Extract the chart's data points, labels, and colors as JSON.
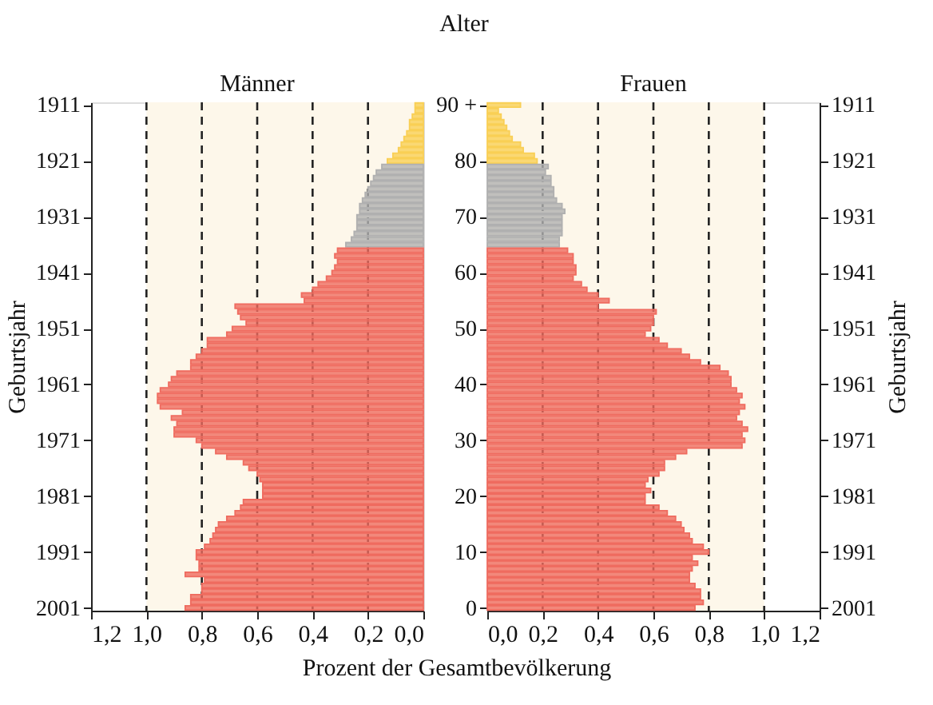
{
  "chart_data": [
    {
      "type": "bar",
      "orientation": "horizontal",
      "title": "Männer",
      "xlabel": "Prozent der Gesamtbevölkerung",
      "ylabel": "Geburtsjahr",
      "categories": [
        "1911",
        null,
        null,
        null,
        null,
        null,
        null,
        null,
        null,
        null,
        "1921",
        null,
        null,
        null,
        null,
        null,
        null,
        null,
        null,
        null,
        "1931",
        null,
        null,
        null,
        null,
        null,
        null,
        null,
        null,
        null,
        "1941",
        null,
        null,
        null,
        null,
        null,
        null,
        null,
        null,
        null,
        "1951",
        null,
        null,
        null,
        null,
        null,
        null,
        null,
        null,
        null,
        "1961",
        null,
        null,
        null,
        null,
        null,
        null,
        null,
        null,
        null,
        "1971",
        null,
        null,
        null,
        null,
        null,
        null,
        null,
        null,
        null,
        "1981",
        null,
        null,
        null,
        null,
        null,
        null,
        null,
        null,
        null,
        "1991",
        null,
        null,
        null,
        null,
        null,
        null,
        null,
        null,
        null,
        "2001"
      ],
      "series": [
        {
          "values": [
            0.03,
            0.03,
            0.04,
            0.05,
            0.05,
            0.06,
            0.07,
            0.08,
            0.09,
            0.11,
            0.13,
            0.15,
            0.17,
            0.18,
            0.19,
            0.2,
            0.21,
            0.22,
            0.23,
            0.23,
            0.24,
            0.24,
            0.24,
            0.25,
            0.26,
            0.28,
            0.31,
            0.32,
            0.31,
            0.32,
            0.33,
            0.35,
            0.38,
            0.4,
            0.44,
            0.43,
            0.68,
            0.67,
            0.66,
            0.64,
            0.69,
            0.71,
            0.78,
            0.78,
            0.8,
            0.82,
            0.84,
            0.84,
            0.89,
            0.91,
            0.92,
            0.95,
            0.96,
            0.96,
            0.95,
            0.87,
            0.91,
            0.89,
            0.9,
            0.9,
            0.82,
            0.8,
            0.75,
            0.71,
            0.65,
            0.63,
            0.6,
            0.59,
            0.58,
            0.58,
            0.58,
            0.65,
            0.66,
            0.68,
            0.71,
            0.74,
            0.75,
            0.76,
            0.77,
            0.79,
            0.82,
            0.82,
            0.81,
            0.81,
            0.86,
            0.79,
            0.8,
            0.8,
            0.84,
            0.84,
            0.86
          ],
          "colors": [
            "#f9cf55",
            "#f9cf55",
            "#f9cf55",
            "#f9cf55",
            "#f9cf55",
            "#f9cf55",
            "#f9cf55",
            "#f9cf55",
            "#f9cf55",
            "#f9cf55",
            "#f9cf55",
            "#b0b0b0",
            "#b0b0b0",
            "#b0b0b0",
            "#b0b0b0",
            "#b0b0b0",
            "#b0b0b0",
            "#b0b0b0",
            "#b0b0b0",
            "#b0b0b0",
            "#b0b0b0",
            "#b0b0b0",
            "#b0b0b0",
            "#b0b0b0",
            "#b0b0b0",
            "#b0b0b0",
            "#ef6b5f",
            "#ef6b5f",
            "#ef6b5f",
            "#ef6b5f",
            "#ef6b5f",
            "#ef6b5f",
            "#ef6b5f",
            "#ef6b5f",
            "#ef6b5f",
            "#ef6b5f",
            "#ef6b5f",
            "#ef6b5f",
            "#ef6b5f",
            "#ef6b5f",
            "#ef6b5f",
            "#ef6b5f",
            "#ef6b5f",
            "#ef6b5f",
            "#ef6b5f",
            "#ef6b5f",
            "#ef6b5f",
            "#ef6b5f",
            "#ef6b5f",
            "#ef6b5f",
            "#ef6b5f",
            "#ef6b5f",
            "#ef6b5f",
            "#ef6b5f",
            "#ef6b5f",
            "#ef6b5f",
            "#ef6b5f",
            "#ef6b5f",
            "#ef6b5f",
            "#ef6b5f",
            "#ef6b5f",
            "#ef6b5f",
            "#ef6b5f",
            "#ef6b5f",
            "#ef6b5f",
            "#ef6b5f",
            "#ef6b5f",
            "#ef6b5f",
            "#ef6b5f",
            "#ef6b5f",
            "#ef6b5f",
            "#ef6b5f",
            "#ef6b5f",
            "#ef6b5f",
            "#ef6b5f",
            "#ef6b5f",
            "#ef6b5f",
            "#ef6b5f",
            "#ef6b5f",
            "#ef6b5f",
            "#ef6b5f",
            "#ef6b5f",
            "#ef6b5f",
            "#ef6b5f",
            "#ef6b5f",
            "#ef6b5f",
            "#ef6b5f",
            "#ef6b5f",
            "#ef6b5f",
            "#ef6b5f",
            "#ef6b5f"
          ]
        }
      ],
      "xlim": [
        1.2,
        0
      ],
      "xticks": [
        {
          "value": 1.2,
          "label": "1,2"
        },
        {
          "value": 1.0,
          "label": "1,0"
        },
        {
          "value": 0.8,
          "label": "0,8"
        },
        {
          "value": 0.6,
          "label": "0,6"
        },
        {
          "value": 0.4,
          "label": "0,4"
        },
        {
          "value": 0.2,
          "label": "0,2"
        },
        {
          "value": 0,
          "label": "0,0"
        }
      ],
      "bands": [
        {
          "axis": "x",
          "from": 0,
          "to": 1.0,
          "color": "#fdf7ea"
        }
      ],
      "ref_lines": [
        {
          "axis": "x",
          "value": 0.2,
          "line_style": "dashed",
          "color": "#222222"
        },
        {
          "axis": "x",
          "value": 0.4,
          "line_style": "dashed",
          "color": "#222222"
        },
        {
          "axis": "x",
          "value": 0.6,
          "line_style": "dashed",
          "color": "#222222"
        },
        {
          "axis": "x",
          "value": 0.8,
          "line_style": "dashed",
          "color": "#222222"
        },
        {
          "axis": "x",
          "value": 1.0,
          "line_style": "dashed",
          "color": "#222222"
        }
      ]
    },
    {
      "type": "bar",
      "orientation": "horizontal",
      "title": "Frauen",
      "ylabel": "Alter",
      "y2label": "Geburtsjahr",
      "categories": [
        "90 +",
        null,
        null,
        null,
        null,
        null,
        null,
        null,
        null,
        null,
        "80",
        null,
        null,
        null,
        null,
        null,
        null,
        null,
        null,
        null,
        "70",
        null,
        null,
        null,
        null,
        null,
        null,
        null,
        null,
        null,
        "60",
        null,
        null,
        null,
        null,
        null,
        null,
        null,
        null,
        null,
        "50",
        null,
        null,
        null,
        null,
        null,
        null,
        null,
        null,
        null,
        "40",
        null,
        null,
        null,
        null,
        null,
        null,
        null,
        null,
        null,
        "30",
        null,
        null,
        null,
        null,
        null,
        null,
        null,
        null,
        null,
        "20",
        null,
        null,
        null,
        null,
        null,
        null,
        null,
        null,
        null,
        "10",
        null,
        null,
        null,
        null,
        null,
        null,
        null,
        null,
        null,
        "0"
      ],
      "y2_categories": [
        "1911",
        null,
        null,
        null,
        null,
        null,
        null,
        null,
        null,
        null,
        "1921",
        null,
        null,
        null,
        null,
        null,
        null,
        null,
        null,
        null,
        "1931",
        null,
        null,
        null,
        null,
        null,
        null,
        null,
        null,
        null,
        "1941",
        null,
        null,
        null,
        null,
        null,
        null,
        null,
        null,
        null,
        "1951",
        null,
        null,
        null,
        null,
        null,
        null,
        null,
        null,
        null,
        "1961",
        null,
        null,
        null,
        null,
        null,
        null,
        null,
        null,
        null,
        "1971",
        null,
        null,
        null,
        null,
        null,
        null,
        null,
        null,
        null,
        "1981",
        null,
        null,
        null,
        null,
        null,
        null,
        null,
        null,
        null,
        "1991",
        null,
        null,
        null,
        null,
        null,
        null,
        null,
        null,
        null,
        "2001"
      ],
      "series": [
        {
          "values": [
            0.12,
            0.04,
            0.05,
            0.06,
            0.07,
            0.08,
            0.09,
            0.12,
            0.13,
            0.17,
            0.18,
            0.22,
            0.21,
            0.23,
            0.23,
            0.24,
            0.24,
            0.25,
            0.27,
            0.28,
            0.27,
            0.27,
            0.27,
            0.27,
            0.26,
            0.26,
            0.29,
            0.31,
            0.31,
            0.32,
            0.32,
            0.31,
            0.34,
            0.36,
            0.4,
            0.44,
            0.4,
            0.61,
            0.6,
            0.6,
            0.59,
            0.57,
            0.62,
            0.65,
            0.7,
            0.73,
            0.77,
            0.84,
            0.87,
            0.88,
            0.88,
            0.9,
            0.92,
            0.91,
            0.93,
            0.91,
            0.9,
            0.92,
            0.94,
            0.92,
            0.93,
            0.92,
            0.72,
            0.68,
            0.64,
            0.64,
            0.62,
            0.58,
            0.57,
            0.59,
            0.57,
            0.57,
            0.62,
            0.65,
            0.68,
            0.7,
            0.71,
            0.73,
            0.74,
            0.78,
            0.8,
            0.74,
            0.76,
            0.74,
            0.73,
            0.73,
            0.75,
            0.77,
            0.77,
            0.78,
            0.75
          ],
          "colors": [
            "#f9cf55",
            "#f9cf55",
            "#f9cf55",
            "#f9cf55",
            "#f9cf55",
            "#f9cf55",
            "#f9cf55",
            "#f9cf55",
            "#f9cf55",
            "#f9cf55",
            "#f9cf55",
            "#b0b0b0",
            "#b0b0b0",
            "#b0b0b0",
            "#b0b0b0",
            "#b0b0b0",
            "#b0b0b0",
            "#b0b0b0",
            "#b0b0b0",
            "#b0b0b0",
            "#b0b0b0",
            "#b0b0b0",
            "#b0b0b0",
            "#b0b0b0",
            "#b0b0b0",
            "#b0b0b0",
            "#ef6b5f",
            "#ef6b5f",
            "#ef6b5f",
            "#ef6b5f",
            "#ef6b5f",
            "#ef6b5f",
            "#ef6b5f",
            "#ef6b5f",
            "#ef6b5f",
            "#ef6b5f",
            "#ef6b5f",
            "#ef6b5f",
            "#ef6b5f",
            "#ef6b5f",
            "#ef6b5f",
            "#ef6b5f",
            "#ef6b5f",
            "#ef6b5f",
            "#ef6b5f",
            "#ef6b5f",
            "#ef6b5f",
            "#ef6b5f",
            "#ef6b5f",
            "#ef6b5f",
            "#ef6b5f",
            "#ef6b5f",
            "#ef6b5f",
            "#ef6b5f",
            "#ef6b5f",
            "#ef6b5f",
            "#ef6b5f",
            "#ef6b5f",
            "#ef6b5f",
            "#ef6b5f",
            "#ef6b5f",
            "#ef6b5f",
            "#ef6b5f",
            "#ef6b5f",
            "#ef6b5f",
            "#ef6b5f",
            "#ef6b5f",
            "#ef6b5f",
            "#ef6b5f",
            "#ef6b5f",
            "#ef6b5f",
            "#ef6b5f",
            "#ef6b5f",
            "#ef6b5f",
            "#ef6b5f",
            "#ef6b5f",
            "#ef6b5f",
            "#ef6b5f",
            "#ef6b5f",
            "#ef6b5f",
            "#ef6b5f",
            "#ef6b5f",
            "#ef6b5f",
            "#ef6b5f",
            "#ef6b5f",
            "#ef6b5f",
            "#ef6b5f",
            "#ef6b5f",
            "#ef6b5f",
            "#ef6b5f",
            "#ef6b5f"
          ]
        }
      ],
      "xlim": [
        0,
        1.2
      ],
      "xticks": [
        {
          "value": 0,
          "label": "0,0"
        },
        {
          "value": 0.2,
          "label": "0,2"
        },
        {
          "value": 0.4,
          "label": "0,4"
        },
        {
          "value": 0.6,
          "label": "0,6"
        },
        {
          "value": 0.8,
          "label": "0,8"
        },
        {
          "value": 1.0,
          "label": "1,0"
        },
        {
          "value": 1.2,
          "label": "1,2"
        }
      ],
      "bands": [
        {
          "axis": "x",
          "from": 0,
          "to": 1.0,
          "color": "#fdf7ea"
        }
      ],
      "ref_lines": [
        {
          "axis": "x",
          "value": 0.2,
          "line_style": "dashed",
          "color": "#222222"
        },
        {
          "axis": "x",
          "value": 0.4,
          "line_style": "dashed",
          "color": "#222222"
        },
        {
          "axis": "x",
          "value": 0.6,
          "line_style": "dashed",
          "color": "#222222"
        },
        {
          "axis": "x",
          "value": 0.8,
          "line_style": "dashed",
          "color": "#222222"
        },
        {
          "axis": "x",
          "value": 1.0,
          "line_style": "dashed",
          "color": "#222222"
        }
      ]
    }
  ]
}
